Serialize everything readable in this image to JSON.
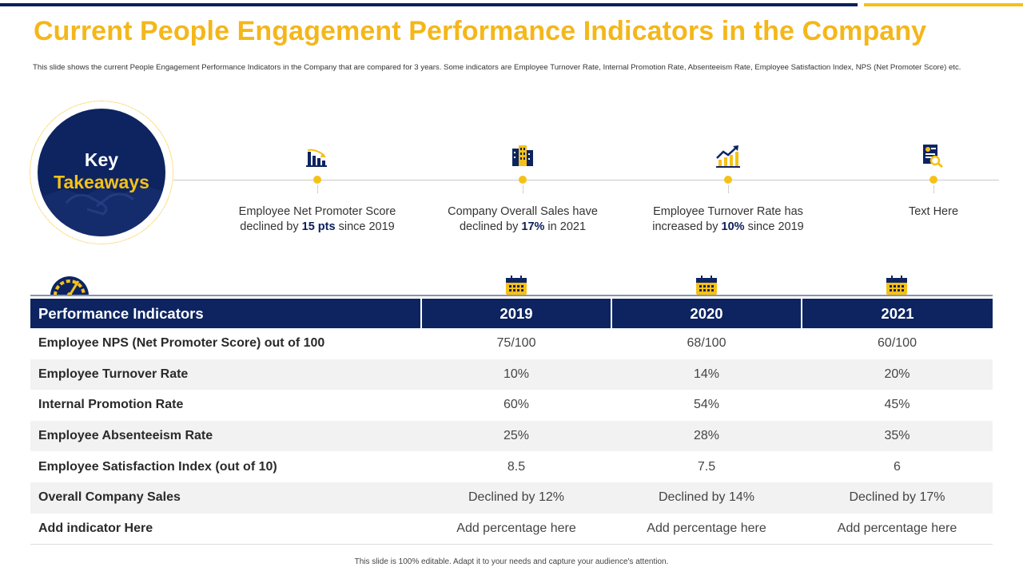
{
  "header": {
    "title": "Current People Engagement Performance Indicators in the Company",
    "subtitle": "This slide shows the current People Engagement Performance Indicators in the Company that are compared for 3 years. Some indicators are Employee Turnover Rate, Internal Promotion Rate, Absenteeism Rate, Employee Satisfaction Index, NPS (Net Promoter Score) etc."
  },
  "colors": {
    "navy": "#0d2461",
    "gold": "#f5c118",
    "title": "#f4b71a"
  },
  "takeaways": {
    "heading_line1": "Key",
    "heading_line2": "Takeaways",
    "items": [
      {
        "icon": "declining-bar-chart-icon",
        "pre": "Employee Net Promoter Score declined by ",
        "bold": "15 pts",
        "post": " since 2019"
      },
      {
        "icon": "building-icon",
        "pre": "Company Overall Sales have declined by ",
        "bold": "17%",
        "post": " in 2021"
      },
      {
        "icon": "growth-chart-icon",
        "pre": "Employee Turnover Rate has increased by ",
        "bold": "10%",
        "post": " since 2019"
      },
      {
        "icon": "document-search-icon",
        "pre": "Text Here",
        "bold": "",
        "post": ""
      }
    ]
  },
  "table": {
    "headers": [
      "Performance Indicators",
      "2019",
      "2020",
      "2021"
    ],
    "rows": [
      [
        "Employee NPS (Net Promoter Score) out of 100",
        "75/100",
        "68/100",
        "60/100"
      ],
      [
        "Employee Turnover Rate",
        "10%",
        "14%",
        "20%"
      ],
      [
        "Internal Promotion Rate",
        "60%",
        "54%",
        "45%"
      ],
      [
        "Employee Absenteeism Rate",
        "25%",
        "28%",
        "35%"
      ],
      [
        "Employee Satisfaction Index (out of 10)",
        "8.5",
        "7.5",
        "6"
      ],
      [
        "Overall Company Sales",
        "Declined by 12%",
        "Declined by 14%",
        "Declined by 17%"
      ],
      [
        "Add indicator Here",
        "Add percentage here",
        "Add percentage here",
        "Add percentage here"
      ]
    ]
  },
  "footer": {
    "text": "This slide is 100% editable. Adapt it to your needs and capture your audience's attention."
  }
}
